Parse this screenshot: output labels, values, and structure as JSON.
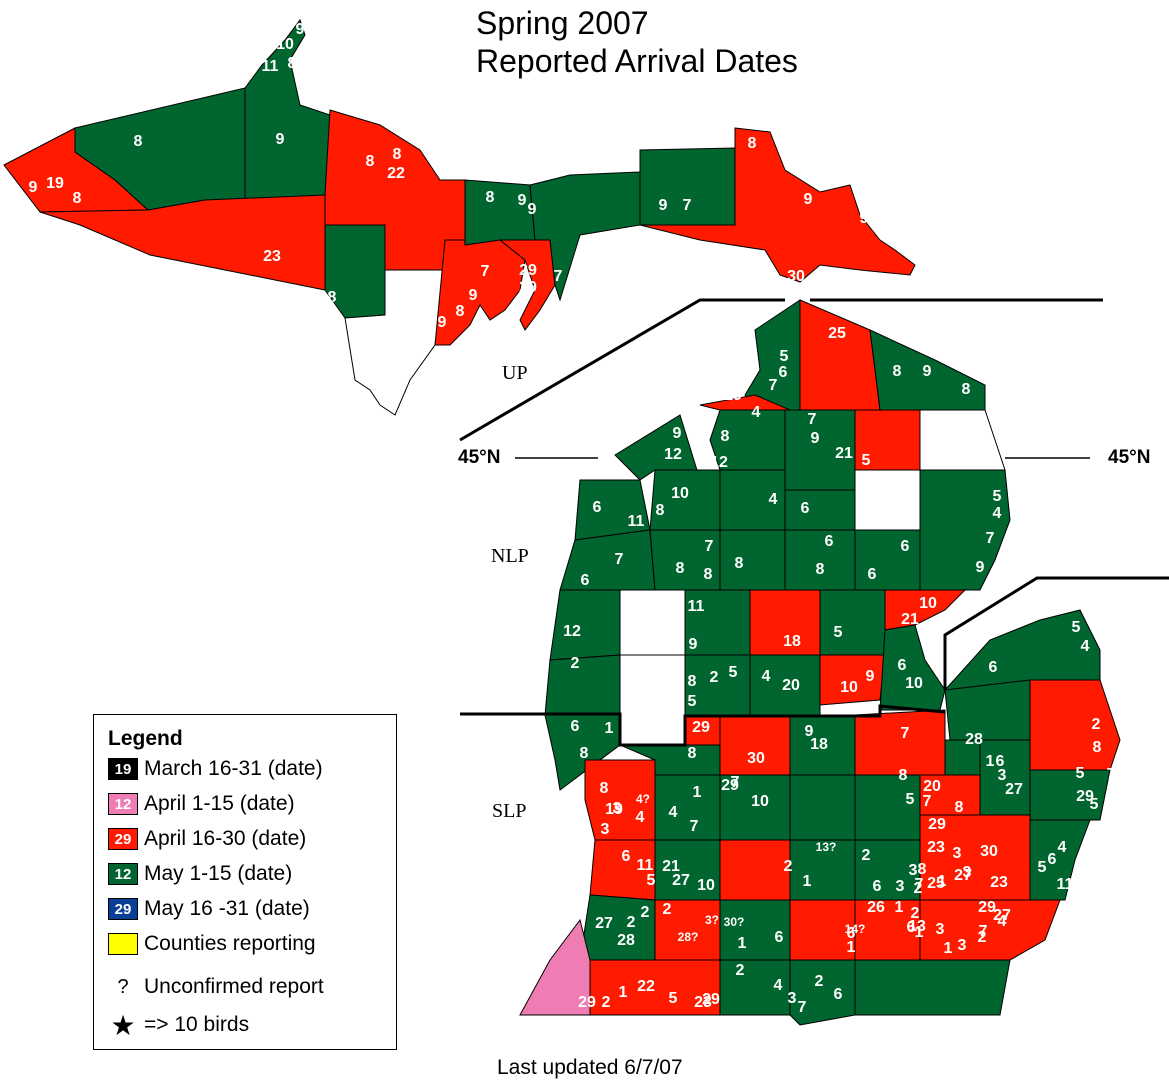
{
  "title_line1": "Spring 2007",
  "title_line2": "Reported Arrival Dates",
  "updated": "Last updated 6/7/07",
  "regions": {
    "up": "UP",
    "nlp": "NLP",
    "slp": "SLP"
  },
  "latitude": {
    "left": "45°N",
    "right": "45°N"
  },
  "colors": {
    "march": "#000000",
    "april_early": "#f07cb4",
    "april_late": "#ff1a00",
    "may_early": "#00652e",
    "may_late": "#0a3f96",
    "reporting": "#ffff00",
    "no_report": "#ffffff"
  },
  "legend": {
    "title": "Legend",
    "items": [
      {
        "sample": "19",
        "label": "March 16-31 (date)",
        "color": "#000000"
      },
      {
        "sample": "12",
        "label": "April 1-15 (date)",
        "color": "#f07cb4"
      },
      {
        "sample": "29",
        "label": "April 16-30 (date)",
        "color": "#ff1a00"
      },
      {
        "sample": "12",
        "label": "May 1-15 (date)",
        "color": "#00652e"
      },
      {
        "sample": "29",
        "label": "May 16 -31 (date)",
        "color": "#0a3f96"
      },
      {
        "sample": "",
        "label": "Counties reporting",
        "color": "#ffff00"
      }
    ],
    "unconfirmed_symbol": "?",
    "unconfirmed_label": "Unconfirmed report",
    "star_symbol": "★",
    "star_label": "=> 10 birds"
  },
  "county_dates": [
    "10",
    "9",
    "11",
    "8",
    "8",
    "9",
    "19",
    "8",
    "9",
    "8",
    "8",
    "22",
    "23",
    "8",
    "9",
    "9",
    "8",
    "7",
    "29",
    "7",
    "29",
    "7",
    "9",
    "8",
    "9",
    "9",
    "7",
    "9",
    "8",
    "9",
    "30",
    "25",
    "5",
    "6",
    "7",
    "19",
    "4",
    "8",
    "9",
    "8",
    "9",
    "12",
    "8",
    "12",
    "7",
    "9",
    "21",
    "5",
    "5",
    "4",
    "7",
    "9",
    "6",
    "11",
    "8",
    "4",
    "6",
    "10",
    "6",
    "7",
    "8",
    "7",
    "8",
    "8",
    "6",
    "8",
    "6",
    "6",
    "10",
    "6",
    "11",
    "9",
    "18",
    "5",
    "21",
    "12",
    "2",
    "2",
    "8",
    "5",
    "4",
    "5",
    "20",
    "10",
    "9",
    "6",
    "10",
    "5",
    "4",
    "6",
    "1",
    "29",
    "8",
    "9",
    "18",
    "7",
    "28",
    "2",
    "8",
    "5",
    "29",
    "8",
    "29",
    "30",
    "4?",
    "4",
    "3",
    "1",
    "10",
    "8",
    "19",
    "4",
    "7",
    "3",
    "6",
    "11",
    "21",
    "27",
    "5",
    "10",
    "7",
    "8",
    "20",
    "5",
    "7",
    "8",
    "1",
    "6",
    "27",
    "3",
    "7",
    "5",
    "2",
    "29",
    "23",
    "3",
    "30",
    "4",
    "6",
    "5",
    "11",
    "19",
    "27",
    "3",
    "3",
    "8",
    "25",
    "7",
    "2",
    "1",
    "13?",
    "2",
    "6",
    "3",
    "2",
    "1",
    "23",
    "29",
    "27",
    "2",
    "2",
    "2",
    "1",
    "22",
    "5",
    "23",
    "29",
    "2",
    "28",
    "3?",
    "28?",
    "30?",
    "1",
    "6",
    "6",
    "26",
    "1",
    "2",
    "13",
    "6",
    "29",
    "27",
    "7",
    "4",
    "1",
    "3",
    "2",
    "1",
    "14?",
    "1",
    "3",
    "2",
    "4",
    "3",
    "7",
    "2",
    "6"
  ]
}
